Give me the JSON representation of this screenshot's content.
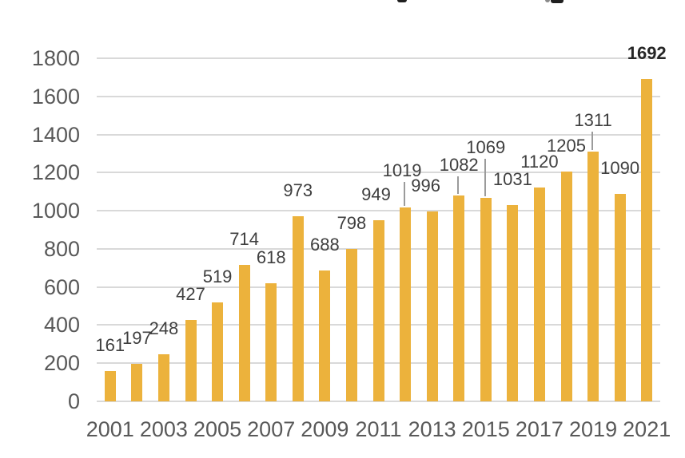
{
  "chart_data": {
    "type": "bar",
    "title": "",
    "title_clipped": true,
    "categories": [
      "2001",
      "2002",
      "2003",
      "2004",
      "2005",
      "2006",
      "2007",
      "2008",
      "2009",
      "2010",
      "2011",
      "2012",
      "2013",
      "2014",
      "2015",
      "2016",
      "2017",
      "2018",
      "2019",
      "2020",
      "2021"
    ],
    "values": [
      161,
      197,
      248,
      427,
      519,
      714,
      618,
      973,
      688,
      798,
      949,
      1019,
      996,
      1082,
      1069,
      1031,
      1120,
      1205,
      1311,
      1090,
      1692
    ],
    "xlabel": "",
    "ylabel": "",
    "ylim": [
      0,
      1800
    ],
    "y_tick_step": 200,
    "y_tick_labels": [
      "0",
      "200",
      "400",
      "600",
      "800",
      "1000",
      "1200",
      "1400",
      "1600",
      "1800"
    ],
    "x_tick_labels": [
      "2001",
      "2003",
      "2005",
      "2007",
      "2009",
      "2011",
      "2013",
      "2015",
      "2017",
      "2019",
      "2021"
    ],
    "grid": "horizontal",
    "legend": "none",
    "data_labels_shown": true,
    "emphasized_label": "1692",
    "labels_with_leader_lines": [
      "1019",
      "1082",
      "1069",
      "1311"
    ],
    "colors": {
      "bar": "#ECB23C",
      "data_label": "#3F3F3F",
      "emphasized_label": "#262626",
      "axis_label": "#595959",
      "gridline": "#D9D9D9",
      "leader_line": "#9B9B9B",
      "background": "#FFFFFF"
    }
  }
}
